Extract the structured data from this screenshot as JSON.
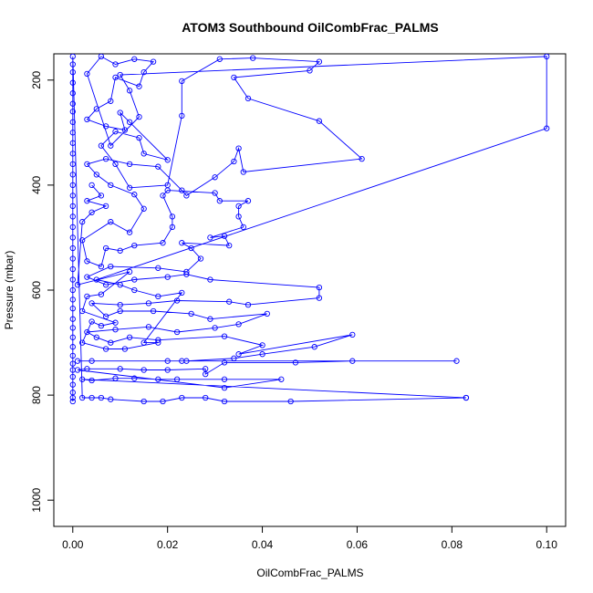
{
  "chart_data": {
    "type": "scatter",
    "title": "ATOM3 Southbound OilCombFrac_PALMS",
    "xlabel": "OilCombFrac_PALMS",
    "ylabel": "Pressure (mbar)",
    "xlim": [
      -0.004,
      0.104
    ],
    "ylim": [
      150,
      1050
    ],
    "y_reversed": true,
    "x_ticks": [
      0.0,
      0.02,
      0.04,
      0.06,
      0.08,
      0.1
    ],
    "x_tick_labels": [
      "0.00",
      "0.02",
      "0.04",
      "0.06",
      "0.08",
      "0.10"
    ],
    "y_ticks": [
      200,
      400,
      600,
      800,
      1000
    ],
    "y_tick_labels": [
      "200",
      "400",
      "600",
      "800",
      "1000"
    ],
    "grid": false,
    "series_color": "#0000ff",
    "series": [
      {
        "points": [
          [
            0.0,
            812
          ],
          [
            0.0,
            805
          ],
          [
            0.0,
            795
          ],
          [
            0.0,
            780
          ],
          [
            0.0,
            765
          ],
          [
            0.0,
            752
          ],
          [
            0.0,
            740
          ],
          [
            0.0,
            725
          ],
          [
            0.0,
            708
          ],
          [
            0.0,
            690
          ],
          [
            0.0,
            672
          ],
          [
            0.0,
            655
          ],
          [
            0.0,
            635
          ],
          [
            0.0,
            618
          ],
          [
            0.0,
            600
          ],
          [
            0.0,
            580
          ],
          [
            0.0,
            560
          ],
          [
            0.0,
            540
          ],
          [
            0.0,
            520
          ],
          [
            0.0,
            500
          ],
          [
            0.0,
            480
          ],
          [
            0.0,
            460
          ],
          [
            0.0,
            440
          ],
          [
            0.0,
            420
          ],
          [
            0.0,
            400
          ],
          [
            0.0,
            380
          ],
          [
            0.0,
            360
          ],
          [
            0.0,
            340
          ],
          [
            0.0,
            320
          ],
          [
            0.0,
            300
          ],
          [
            0.0,
            280
          ],
          [
            0.0,
            260
          ],
          [
            0.0,
            245
          ],
          [
            0.0,
            225
          ],
          [
            0.0,
            205
          ],
          [
            0.0,
            185
          ],
          [
            0.0,
            170
          ],
          [
            0.0,
            155
          ],
          [
            0.002,
            805
          ],
          [
            0.004,
            805
          ],
          [
            0.006,
            805
          ],
          [
            0.008,
            808
          ],
          [
            0.015,
            812
          ],
          [
            0.019,
            812
          ],
          [
            0.023,
            805
          ],
          [
            0.028,
            805
          ],
          [
            0.032,
            812
          ],
          [
            0.046,
            812
          ],
          [
            0.083,
            805
          ],
          [
            0.083,
            805
          ],
          [
            0.002,
            770
          ],
          [
            0.004,
            772
          ],
          [
            0.009,
            768
          ],
          [
            0.013,
            768
          ],
          [
            0.018,
            770
          ],
          [
            0.022,
            770
          ],
          [
            0.032,
            770
          ],
          [
            0.044,
            770
          ],
          [
            0.032,
            786
          ],
          [
            0.001,
            752
          ],
          [
            0.003,
            750
          ],
          [
            0.01,
            750
          ],
          [
            0.015,
            752
          ],
          [
            0.02,
            752
          ],
          [
            0.028,
            750
          ],
          [
            0.028,
            760
          ],
          [
            0.032,
            738
          ],
          [
            0.047,
            738
          ],
          [
            0.059,
            735
          ],
          [
            0.081,
            735
          ],
          [
            0.001,
            735
          ],
          [
            0.004,
            735
          ],
          [
            0.02,
            735
          ],
          [
            0.023,
            735
          ],
          [
            0.024,
            735
          ],
          [
            0.034,
            730
          ],
          [
            0.04,
            722
          ],
          [
            0.051,
            708
          ],
          [
            0.059,
            685
          ],
          [
            0.035,
            722
          ],
          [
            0.04,
            705
          ],
          [
            0.032,
            688
          ],
          [
            0.018,
            695
          ],
          [
            0.012,
            690
          ],
          [
            0.008,
            700
          ],
          [
            0.005,
            690
          ],
          [
            0.003,
            680
          ],
          [
            0.009,
            675
          ],
          [
            0.016,
            670
          ],
          [
            0.022,
            680
          ],
          [
            0.03,
            672
          ],
          [
            0.035,
            665
          ],
          [
            0.041,
            645
          ],
          [
            0.029,
            655
          ],
          [
            0.025,
            645
          ],
          [
            0.017,
            640
          ],
          [
            0.01,
            640
          ],
          [
            0.007,
            650
          ],
          [
            0.004,
            625
          ],
          [
            0.01,
            628
          ],
          [
            0.016,
            625
          ],
          [
            0.022,
            620
          ],
          [
            0.033,
            622
          ],
          [
            0.037,
            628
          ],
          [
            0.052,
            615
          ],
          [
            0.052,
            595
          ],
          [
            0.029,
            580
          ],
          [
            0.024,
            570
          ],
          [
            0.02,
            575
          ],
          [
            0.013,
            580
          ],
          [
            0.007,
            590
          ],
          [
            0.003,
            575
          ],
          [
            0.008,
            555
          ],
          [
            0.018,
            558
          ],
          [
            0.024,
            565
          ],
          [
            0.027,
            540
          ],
          [
            0.025,
            520
          ],
          [
            0.023,
            510
          ],
          [
            0.033,
            515
          ],
          [
            0.032,
            497
          ],
          [
            0.029,
            500
          ],
          [
            0.036,
            480
          ],
          [
            0.035,
            460
          ],
          [
            0.035,
            440
          ],
          [
            0.037,
            430
          ],
          [
            0.031,
            430
          ],
          [
            0.03,
            415
          ],
          [
            0.02,
            410
          ],
          [
            0.019,
            420
          ],
          [
            0.021,
            460
          ],
          [
            0.021,
            480
          ],
          [
            0.019,
            510
          ],
          [
            0.013,
            515
          ],
          [
            0.01,
            525
          ],
          [
            0.007,
            520
          ],
          [
            0.006,
            555
          ],
          [
            0.003,
            545
          ],
          [
            0.002,
            505
          ],
          [
            0.008,
            470
          ],
          [
            0.012,
            490
          ],
          [
            0.015,
            445
          ],
          [
            0.013,
            418
          ],
          [
            0.008,
            400
          ],
          [
            0.005,
            380
          ],
          [
            0.003,
            360
          ],
          [
            0.007,
            350
          ],
          [
            0.012,
            360
          ],
          [
            0.018,
            365
          ],
          [
            0.023,
            410
          ],
          [
            0.024,
            420
          ],
          [
            0.03,
            385
          ],
          [
            0.034,
            355
          ],
          [
            0.035,
            330
          ],
          [
            0.036,
            375
          ],
          [
            0.061,
            350
          ],
          [
            0.052,
            278
          ],
          [
            0.037,
            235
          ],
          [
            0.034,
            195
          ],
          [
            0.05,
            182
          ],
          [
            0.052,
            165
          ],
          [
            0.038,
            158
          ],
          [
            0.031,
            160
          ],
          [
            0.023,
            202
          ],
          [
            0.023,
            268
          ],
          [
            0.02,
            400
          ],
          [
            0.012,
            405
          ],
          [
            0.009,
            360
          ],
          [
            0.006,
            325
          ],
          [
            0.009,
            298
          ],
          [
            0.014,
            310
          ],
          [
            0.015,
            340
          ],
          [
            0.02,
            352
          ],
          [
            0.012,
            280
          ],
          [
            0.01,
            262
          ],
          [
            0.011,
            295
          ],
          [
            0.007,
            288
          ],
          [
            0.003,
            275
          ],
          [
            0.005,
            255
          ],
          [
            0.008,
            240
          ],
          [
            0.009,
            195
          ],
          [
            0.014,
            212
          ],
          [
            0.015,
            185
          ],
          [
            0.017,
            165
          ],
          [
            0.013,
            160
          ],
          [
            0.009,
            170
          ],
          [
            0.006,
            155
          ],
          [
            0.003,
            188
          ],
          [
            0.008,
            325
          ],
          [
            0.014,
            270
          ],
          [
            0.012,
            220
          ],
          [
            0.01,
            190
          ],
          [
            0.1,
            155
          ],
          [
            0.1,
            292
          ],
          [
            0.005,
            580
          ],
          [
            0.01,
            590
          ],
          [
            0.013,
            600
          ],
          [
            0.018,
            612
          ],
          [
            0.023,
            605
          ],
          [
            0.015,
            700
          ],
          [
            0.018,
            700
          ],
          [
            0.011,
            712
          ],
          [
            0.007,
            712
          ],
          [
            0.002,
            700
          ],
          [
            0.004,
            660
          ],
          [
            0.006,
            668
          ],
          [
            0.009,
            662
          ],
          [
            0.002,
            640
          ],
          [
            0.003,
            612
          ],
          [
            0.006,
            608
          ],
          [
            0.012,
            565
          ],
          [
            0.001,
            590
          ],
          [
            0.002,
            470
          ],
          [
            0.004,
            452
          ],
          [
            0.007,
            440
          ],
          [
            0.003,
            430
          ],
          [
            0.006,
            420
          ],
          [
            0.004,
            400
          ]
        ]
      }
    ]
  }
}
